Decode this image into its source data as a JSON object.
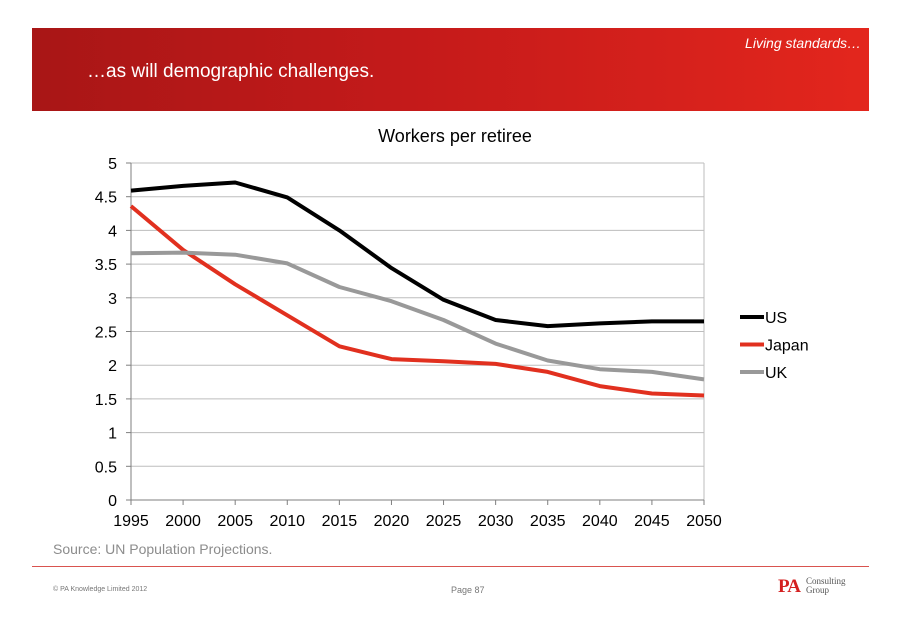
{
  "header": {
    "section_label": "Living standards…",
    "title": "…as will demographic challenges."
  },
  "footer": {
    "source": "Source: UN Population Projections.",
    "copyright": "© PA Knowledge Limited 2012",
    "page": "Page 87",
    "logo_mark": "PA",
    "logo_line1": "Consulting",
    "logo_line2": "Group"
  },
  "chart_data": {
    "type": "line",
    "title": "Workers per retiree",
    "xlabel": "",
    "ylabel": "",
    "x": [
      "1995",
      "2000",
      "2005",
      "2010",
      "2015",
      "2020",
      "2025",
      "2030",
      "2035",
      "2040",
      "2045",
      "2050"
    ],
    "ylim": [
      0,
      5
    ],
    "yticks": [
      "0",
      "0.5",
      "1",
      "1.5",
      "2",
      "2.5",
      "3",
      "3.5",
      "4",
      "4.5",
      "5"
    ],
    "grid": true,
    "legend_position": "right",
    "series": [
      {
        "name": "US",
        "color": "#000000",
        "values": [
          4.59,
          4.66,
          4.71,
          4.49,
          4.0,
          3.44,
          2.97,
          2.67,
          2.58,
          2.62,
          2.65,
          2.65
        ]
      },
      {
        "name": "Japan",
        "color": "#e1301f",
        "values": [
          4.36,
          3.71,
          3.2,
          2.74,
          2.28,
          2.09,
          2.06,
          2.02,
          1.9,
          1.69,
          1.58,
          1.55
        ]
      },
      {
        "name": "UK",
        "color": "#999999",
        "values": [
          3.66,
          3.67,
          3.64,
          3.51,
          3.16,
          2.95,
          2.67,
          2.32,
          2.07,
          1.94,
          1.9,
          1.79
        ]
      }
    ]
  }
}
